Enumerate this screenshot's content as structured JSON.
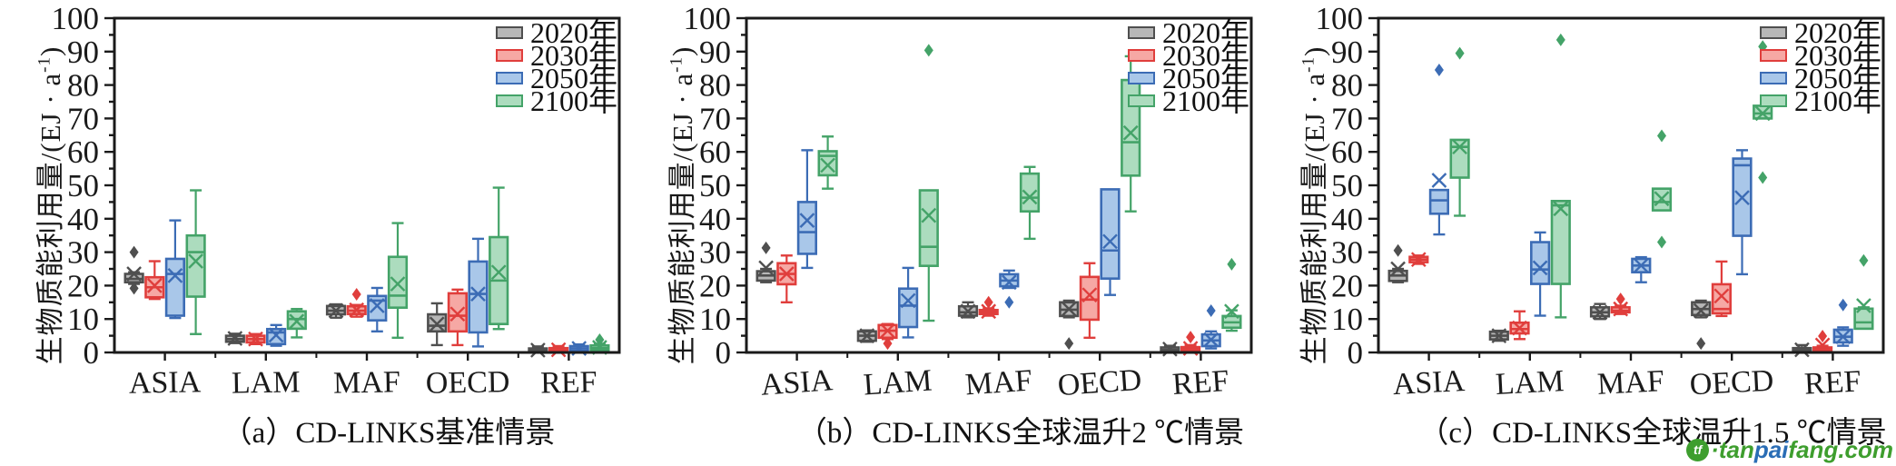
{
  "figure": {
    "y_axis_label": {
      "pre": "生物质能利用量/(EJ · a",
      "sup": "-1",
      "post": ")"
    },
    "y_axis": {
      "min": 0,
      "max": 100,
      "major_step": 10,
      "minor_step": 5
    },
    "categories": [
      "ASIA",
      "LAM",
      "MAF",
      "OECD",
      "REF"
    ],
    "legend": [
      {
        "label": "2020年",
        "fill": "#b7b7b7",
        "stroke": "#4f4f4f"
      },
      {
        "label": "2030年",
        "fill": "#f6a8a4",
        "stroke": "#e03e3c"
      },
      {
        "label": "2050年",
        "fill": "#a9c7e9",
        "stroke": "#3c6cb5"
      },
      {
        "label": "2100年",
        "fill": "#acdcbe",
        "stroke": "#44a368"
      }
    ],
    "panels": [
      {
        "id": "a",
        "caption": "（a）CD-LINKS基准情景"
      },
      {
        "id": "b",
        "caption": "（b）CD-LINKS全球温升2 ℃情景"
      },
      {
        "id": "c",
        "caption": "（c）CD-LINKS全球温升1.5 ℃情景"
      }
    ],
    "axis_color": "#1a1a1a"
  },
  "chart_data": [
    {
      "type": "box",
      "panel": "a",
      "title": "（a）CD-LINKS基准情景",
      "ylabel": "生物质能利用量/(EJ·a⁻¹)",
      "ylim": [
        0,
        100
      ],
      "grid": false,
      "legend_position": "top-right",
      "categories": [
        "ASIA",
        "LAM",
        "MAF",
        "OECD",
        "REF"
      ],
      "series": [
        {
          "name": "2020年",
          "boxes": [
            {
              "low": 20.5,
              "q1": 21,
              "median": 22,
              "q3": 23.5,
              "high": 24,
              "mean": 23.5,
              "outliers": [
                30,
                19.2
              ]
            },
            {
              "low": 2.8,
              "q1": 3.2,
              "median": 4,
              "q3": 5,
              "high": 5.6,
              "mean": 4.2,
              "outliers": []
            },
            {
              "low": 10.4,
              "q1": 11.4,
              "median": 12.5,
              "q3": 13.9,
              "high": 14.4,
              "mean": 12.5,
              "outliers": []
            },
            {
              "low": 2.2,
              "q1": 6.3,
              "median": 8,
              "q3": 11.4,
              "high": 14.7,
              "mean": 8.5,
              "outliers": []
            },
            {
              "low": 0,
              "q1": 0.2,
              "median": 0.6,
              "q3": 1.2,
              "high": 1.8,
              "mean": 0.7,
              "outliers": []
            }
          ]
        },
        {
          "name": "2030年",
          "boxes": [
            {
              "low": 16,
              "q1": 16.5,
              "median": 19.5,
              "q3": 22.5,
              "high": 27.3,
              "mean": 20,
              "outliers": []
            },
            {
              "low": 2.5,
              "q1": 3,
              "median": 4,
              "q3": 5,
              "high": 5.5,
              "mean": 4,
              "outliers": []
            },
            {
              "low": 10.7,
              "q1": 11.5,
              "median": 12.5,
              "q3": 13.8,
              "high": 14.2,
              "mean": 12.7,
              "outliers": [
                17.4
              ]
            },
            {
              "low": 2.2,
              "q1": 6.3,
              "median": 11,
              "q3": 17.7,
              "high": 18.8,
              "mean": 11.5,
              "outliers": []
            },
            {
              "low": 0.1,
              "q1": 0.3,
              "median": 0.8,
              "q3": 1.3,
              "high": 1.9,
              "mean": 0.8,
              "outliers": []
            }
          ]
        },
        {
          "name": "2050年",
          "boxes": [
            {
              "low": 10.3,
              "q1": 11,
              "median": 23.5,
              "q3": 28,
              "high": 39.5,
              "mean": 23,
              "outliers": []
            },
            {
              "low": 2,
              "q1": 2.5,
              "median": 6,
              "q3": 7,
              "high": 8.2,
              "mean": 5.2,
              "outliers": []
            },
            {
              "low": 6.3,
              "q1": 9.6,
              "median": 15.5,
              "q3": 16.9,
              "high": 19.3,
              "mean": 14,
              "outliers": []
            },
            {
              "low": 1.8,
              "q1": 6,
              "median": 17.5,
              "q3": 27.2,
              "high": 34,
              "mean": 17.5,
              "outliers": []
            },
            {
              "low": 0.2,
              "q1": 0.5,
              "median": 1.2,
              "q3": 1.9,
              "high": 2.4,
              "mean": 1.2,
              "outliers": []
            }
          ]
        },
        {
          "name": "2100年",
          "boxes": [
            {
              "low": 5.5,
              "q1": 16.7,
              "median": 30,
              "q3": 35,
              "high": 48.5,
              "mean": 27.3,
              "outliers": []
            },
            {
              "low": 4.5,
              "q1": 7.1,
              "median": 10,
              "q3": 12.3,
              "high": 13,
              "mean": 9.3,
              "outliers": []
            },
            {
              "low": 4.4,
              "q1": 13.4,
              "median": 17,
              "q3": 28.6,
              "high": 38.7,
              "mean": 20.5,
              "outliers": []
            },
            {
              "low": 7,
              "q1": 8.5,
              "median": 21.5,
              "q3": 34.5,
              "high": 49.3,
              "mean": 24,
              "outliers": []
            },
            {
              "low": 0.2,
              "q1": 0.7,
              "median": 1.3,
              "q3": 2.1,
              "high": 2.6,
              "mean": 1.5,
              "outliers": [
                3.8
              ]
            }
          ]
        }
      ]
    },
    {
      "type": "box",
      "panel": "b",
      "title": "（b）CD-LINKS全球温升2 ℃情景",
      "ylabel": "生物质能利用量/(EJ·a⁻¹)",
      "ylim": [
        0,
        100
      ],
      "grid": false,
      "legend_position": "top-right",
      "categories": [
        "ASIA",
        "LAM",
        "MAF",
        "OECD",
        "REF"
      ],
      "series": [
        {
          "name": "2020年",
          "boxes": [
            {
              "low": 21,
              "q1": 21.5,
              "median": 23,
              "q3": 24.3,
              "high": 25,
              "mean": 25.3,
              "outliers": [
                31.3
              ]
            },
            {
              "low": 3.2,
              "q1": 3.5,
              "median": 5,
              "q3": 6.3,
              "high": 6.6,
              "mean": 5,
              "outliers": []
            },
            {
              "low": 10.5,
              "q1": 11,
              "median": 12,
              "q3": 13.8,
              "high": 15,
              "mean": 12.3,
              "outliers": []
            },
            {
              "low": 10.5,
              "q1": 10.9,
              "median": 12.8,
              "q3": 15,
              "high": 15.5,
              "mean": 13,
              "outliers": [
                2.7
              ]
            },
            {
              "low": 0,
              "q1": 0.3,
              "median": 0.8,
              "q3": 1.5,
              "high": 2,
              "mean": 1,
              "outliers": []
            }
          ]
        },
        {
          "name": "2030年",
          "boxes": [
            {
              "low": 15,
              "q1": 20.4,
              "median": 23.5,
              "q3": 26.7,
              "high": 29,
              "mean": 23.5,
              "outliers": []
            },
            {
              "low": 4,
              "q1": 4.4,
              "median": 6.5,
              "q3": 8.2,
              "high": 8.5,
              "mean": 6.5,
              "outliers": [
                2.7
              ]
            },
            {
              "low": 11,
              "q1": 11.5,
              "median": 12,
              "q3": 12.7,
              "high": 13.2,
              "mean": 12.3,
              "outliers": [
                15
              ]
            },
            {
              "low": 4.4,
              "q1": 9.8,
              "median": 15.8,
              "q3": 22.6,
              "high": 26.7,
              "mean": 17.2,
              "outliers": []
            },
            {
              "low": 0.2,
              "q1": 0.5,
              "median": 1,
              "q3": 1.6,
              "high": 2.2,
              "mean": 1.2,
              "outliers": [
                4.6
              ]
            }
          ]
        },
        {
          "name": "2050年",
          "boxes": [
            {
              "low": 25.3,
              "q1": 29.5,
              "median": 36,
              "q3": 45,
              "high": 60.5,
              "mean": 39.5,
              "outliers": []
            },
            {
              "low": 4.5,
              "q1": 7.6,
              "median": 14,
              "q3": 19.1,
              "high": 25.3,
              "mean": 15.5,
              "outliers": []
            },
            {
              "low": 19.3,
              "q1": 19.8,
              "median": 21.5,
              "q3": 23.4,
              "high": 24.5,
              "mean": 21,
              "outliers": [
                15
              ]
            },
            {
              "low": 17.2,
              "q1": 22.1,
              "median": 30.5,
              "q3": 48.8,
              "high": 48.8,
              "mean": 33.2,
              "outliers": []
            },
            {
              "low": 1.2,
              "q1": 1.9,
              "median": 3.6,
              "q3": 5.4,
              "high": 6.3,
              "mean": 3.8,
              "outliers": [
                12.5
              ]
            }
          ]
        },
        {
          "name": "2100年",
          "boxes": [
            {
              "low": 49,
              "q1": 53,
              "median": 58.8,
              "q3": 60.2,
              "high": 64.6,
              "mean": 56,
              "outliers": []
            },
            {
              "low": 9.5,
              "q1": 25.9,
              "median": 31.6,
              "q3": 48.5,
              "high": 48.5,
              "mean": 41,
              "outliers": [
                90.4
              ]
            },
            {
              "low": 34,
              "q1": 42.2,
              "median": 46.3,
              "q3": 53.5,
              "high": 55.5,
              "mean": 46.5,
              "outliers": []
            },
            {
              "low": 42.2,
              "q1": 52.9,
              "median": 62.9,
              "q3": 81.5,
              "high": 88.6,
              "mean": 65.7,
              "outliers": []
            },
            {
              "low": 6.5,
              "q1": 7.4,
              "median": 9,
              "q3": 10.9,
              "high": 12.6,
              "mean": 12.3,
              "outliers": [
                26.4
              ]
            }
          ]
        }
      ]
    },
    {
      "type": "box",
      "panel": "c",
      "title": "（c）CD-LINKS全球温升1.5 ℃情景",
      "ylabel": "生物质能利用量/(EJ·a⁻¹)",
      "ylim": [
        0,
        100
      ],
      "grid": false,
      "legend_position": "top-right",
      "categories": [
        "ASIA",
        "LAM",
        "MAF",
        "OECD",
        "REF"
      ],
      "series": [
        {
          "name": "2020年",
          "boxes": [
            {
              "low": 21,
              "q1": 21.4,
              "median": 23,
              "q3": 24.4,
              "high": 25,
              "mean": 25,
              "outliers": [
                30.5
              ]
            },
            {
              "low": 3.5,
              "q1": 3.9,
              "median": 5,
              "q3": 6.2,
              "high": 6.5,
              "mean": 5,
              "outliers": []
            },
            {
              "low": 10,
              "q1": 10.8,
              "median": 12,
              "q3": 13.5,
              "high": 14.5,
              "mean": 12,
              "outliers": []
            },
            {
              "low": 10.5,
              "q1": 11.2,
              "median": 13,
              "q3": 15,
              "high": 15.5,
              "mean": 12.5,
              "outliers": [
                2.7
              ]
            },
            {
              "low": 0,
              "q1": 0.2,
              "median": 0.6,
              "q3": 1.3,
              "high": 2.2,
              "mean": 0.8,
              "outliers": []
            }
          ]
        },
        {
          "name": "2030年",
          "boxes": [
            {
              "low": 26.5,
              "q1": 27,
              "median": 27.8,
              "q3": 28.6,
              "high": 29,
              "mean": 27.8,
              "outliers": []
            },
            {
              "low": 4,
              "q1": 5.7,
              "median": 7,
              "q3": 8.9,
              "high": 12.3,
              "mean": 7.3,
              "outliers": []
            },
            {
              "low": 11.5,
              "q1": 12,
              "median": 12.5,
              "q3": 13.5,
              "high": 14,
              "mean": 13,
              "outliers": [
                16
              ]
            },
            {
              "low": 10.9,
              "q1": 11.7,
              "median": 13,
              "q3": 20.4,
              "high": 27.2,
              "mean": 16.9,
              "outliers": []
            },
            {
              "low": 0.2,
              "q1": 0.5,
              "median": 1,
              "q3": 1.5,
              "high": 2,
              "mean": 2.2,
              "outliers": [
                4.9
              ]
            }
          ]
        },
        {
          "name": "2050年",
          "boxes": [
            {
              "low": 35.3,
              "q1": 41.5,
              "median": 45.5,
              "q3": 48.6,
              "high": 48.6,
              "mean": 51.5,
              "outliers": [
                84.5
              ]
            },
            {
              "low": 11,
              "q1": 20.5,
              "median": 24.8,
              "q3": 33,
              "high": 35.9,
              "mean": 25.3,
              "outliers": []
            },
            {
              "low": 21,
              "q1": 24,
              "median": 26,
              "q3": 28,
              "high": 28.5,
              "mean": 26,
              "outliers": []
            },
            {
              "low": 23.4,
              "q1": 34.9,
              "median": 56,
              "q3": 58,
              "high": 60.5,
              "mean": 46.3,
              "outliers": []
            },
            {
              "low": 2,
              "q1": 3,
              "median": 4.7,
              "q3": 6.8,
              "high": 7.5,
              "mean": 4.7,
              "outliers": [
                14.2
              ]
            }
          ]
        },
        {
          "name": "2100年",
          "boxes": [
            {
              "low": 40.9,
              "q1": 52.3,
              "median": 61.5,
              "q3": 63.6,
              "high": 63.6,
              "mean": 61.5,
              "outliers": [
                89.5
              ]
            },
            {
              "low": 10.5,
              "q1": 20.5,
              "median": 44,
              "q3": 45.3,
              "high": 45.3,
              "mean": 43,
              "outliers": [
                93.5
              ]
            },
            {
              "low": 42.5,
              "q1": 42.5,
              "median": 45,
              "q3": 49,
              "high": 49,
              "mean": 46,
              "outliers": [
                64.8,
                33
              ]
            },
            {
              "low": 70,
              "q1": 70,
              "median": 71.5,
              "q3": 73.8,
              "high": 73.8,
              "mean": 71.5,
              "outliers": [
                91.5,
                52.3
              ]
            },
            {
              "low": 7.1,
              "q1": 7.1,
              "median": 9,
              "q3": 13.1,
              "high": 13.5,
              "mean": 14,
              "outliers": [
                27.5
              ]
            }
          ]
        }
      ]
    }
  ],
  "watermark": {
    "icon_text": "tf",
    "parts": [
      {
        "text": "·tan",
        "color": "#3e9e2e"
      },
      {
        "text": "pai",
        "color": "#2a6db5"
      },
      {
        "text": "fang",
        "color": "#3e9e2e"
      },
      {
        "text": ".com",
        "color": "#3e9e2e"
      }
    ]
  }
}
